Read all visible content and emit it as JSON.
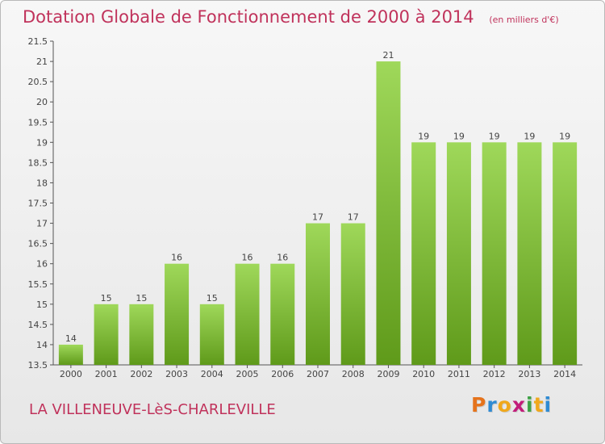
{
  "header": {
    "title": "Dotation Globale de Fonctionnement de 2000 à 2014",
    "subtitle": "(en milliers d'€)"
  },
  "footer": {
    "commune": "LA VILLENEUVE-LèS-CHARLEVILLE"
  },
  "logo": {
    "letters": [
      "P",
      "r",
      "o",
      "x",
      "i",
      "t",
      "i"
    ],
    "colors": [
      "#e5731c",
      "#2f8bd3",
      "#f0a81c",
      "#c21c7a",
      "#3da245",
      "#f0a81c",
      "#2f8bd3"
    ]
  },
  "colors": {
    "bar_top": "#9fd85a",
    "bar_bottom": "#5f9a1a",
    "text_accent": "#c0325b"
  },
  "chart_data": {
    "type": "bar",
    "categories": [
      "2000",
      "2001",
      "2002",
      "2003",
      "2004",
      "2005",
      "2006",
      "2007",
      "2008",
      "2009",
      "2010",
      "2011",
      "2012",
      "2013",
      "2014"
    ],
    "values": [
      14,
      15,
      15,
      16,
      15,
      16,
      16,
      17,
      17,
      21,
      19,
      19,
      19,
      19,
      19
    ],
    "value_labels": [
      "14",
      "15",
      "15",
      "16",
      "15",
      "16",
      "16",
      "17",
      "17",
      "21",
      "19",
      "19",
      "19",
      "19",
      "19"
    ],
    "ylim": [
      13.5,
      21.5
    ],
    "yticks": [
      13.5,
      14,
      14.5,
      15,
      15.5,
      16,
      16.5,
      17,
      17.5,
      18,
      18.5,
      19,
      19.5,
      20,
      20.5,
      21,
      21.5
    ],
    "ytick_labels": [
      "13.5",
      "14",
      "14.5",
      "15",
      "15.5",
      "16",
      "16.5",
      "17",
      "17.5",
      "18",
      "18.5",
      "19",
      "19.5",
      "20",
      "20.5",
      "21",
      "21.5"
    ],
    "grid": false
  }
}
